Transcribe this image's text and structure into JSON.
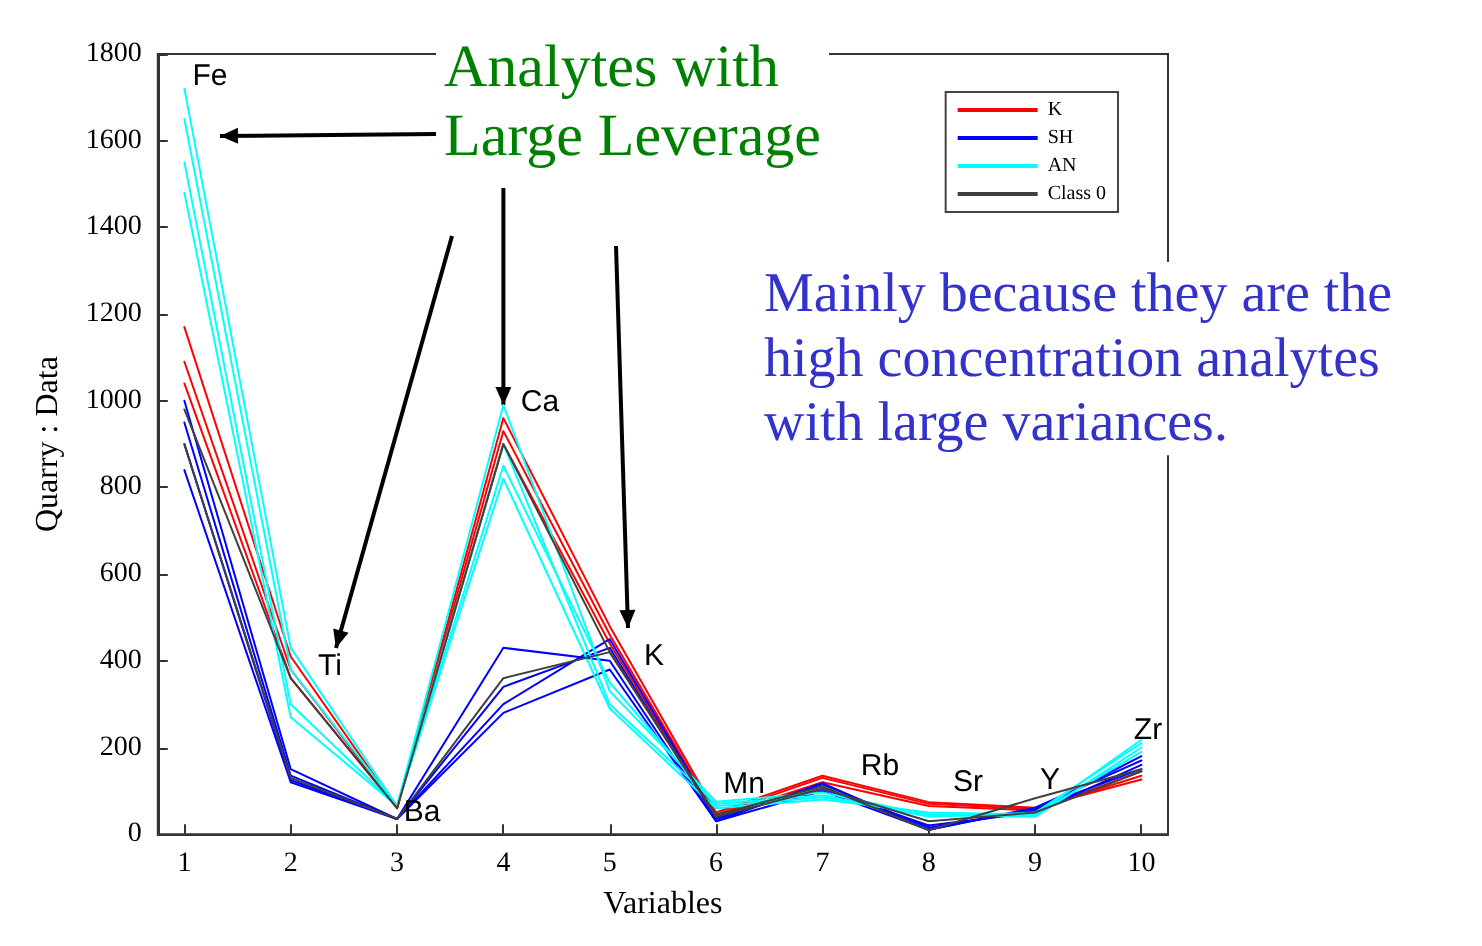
{
  "chart_data": {
    "type": "line",
    "xlabel": "Variables",
    "ylabel": "Quarry : Data",
    "x": [
      1,
      2,
      3,
      4,
      5,
      6,
      7,
      8,
      9,
      10
    ],
    "xlim": [
      0.75,
      10.25
    ],
    "xticks": [
      1,
      2,
      3,
      4,
      5,
      6,
      7,
      8,
      9,
      10
    ],
    "ylim": [
      0,
      1800
    ],
    "yticks": [
      0,
      200,
      400,
      600,
      800,
      1000,
      1200,
      1400,
      1600,
      1800
    ],
    "grid": false,
    "legend": "top right",
    "marker": "none",
    "line_style": "solid",
    "series": [
      {
        "name": "K",
        "color": "#ff0000",
        "values": [
          1170,
          410,
          60,
          960,
          480,
          50,
          135,
          74,
          61,
          126
        ]
      },
      {
        "color": "#ff0000",
        "values": [
          1090,
          380,
          60,
          930,
          460,
          45,
          130,
          70,
          58,
          135
        ]
      },
      {
        "color": "#ff0000",
        "values": [
          1040,
          360,
          60,
          900,
          440,
          40,
          120,
          65,
          55,
          145
        ]
      },
      {
        "name": "SH",
        "color": "#0000ff",
        "values": [
          1000,
          150,
          35,
          430,
          400,
          30,
          118,
          10,
          61,
          170
        ]
      },
      {
        "color": "#0000ff",
        "values": [
          950,
          135,
          35,
          340,
          430,
          35,
          115,
          15,
          55,
          180
        ]
      },
      {
        "color": "#0000ff",
        "values": [
          900,
          125,
          35,
          300,
          450,
          40,
          105,
          20,
          50,
          160
        ]
      },
      {
        "color": "#0000ff",
        "values": [
          840,
          120,
          35,
          280,
          380,
          30,
          100,
          10,
          60,
          150
        ]
      },
      {
        "name": "AN",
        "color": "#00ffff",
        "values": [
          1720,
          430,
          65,
          990,
          330,
          75,
          96,
          44,
          44,
          218
        ]
      },
      {
        "color": "#00ffff",
        "values": [
          1650,
          380,
          65,
          900,
          300,
          70,
          90,
          40,
          50,
          210
        ]
      },
      {
        "color": "#00ffff",
        "values": [
          1550,
          300,
          65,
          850,
          350,
          65,
          85,
          45,
          40,
          200
        ]
      },
      {
        "color": "#00ffff",
        "values": [
          1480,
          270,
          65,
          820,
          290,
          60,
          80,
          50,
          45,
          190
        ]
      },
      {
        "name": "Class 0",
        "color": "#404040",
        "values": [
          980,
          360,
          60,
          900,
          420,
          45,
          110,
          9,
          83,
          150
        ]
      },
      {
        "color": "#404040",
        "values": [
          900,
          130,
          35,
          360,
          420,
          40,
          105,
          30,
          50,
          145
        ]
      }
    ],
    "annotations": [
      "Fe",
      "Ti",
      "Ba",
      "Ca",
      "K",
      "Mn",
      "Rb",
      "Sr",
      "Y",
      "Zr",
      {
        "text": "Analytes with\nLarge Leverage",
        "x": 4,
        "y": 990
      },
      "Mainly because they are the\nhigh concentration analytes\nwith large variances."
    ]
  }
}
